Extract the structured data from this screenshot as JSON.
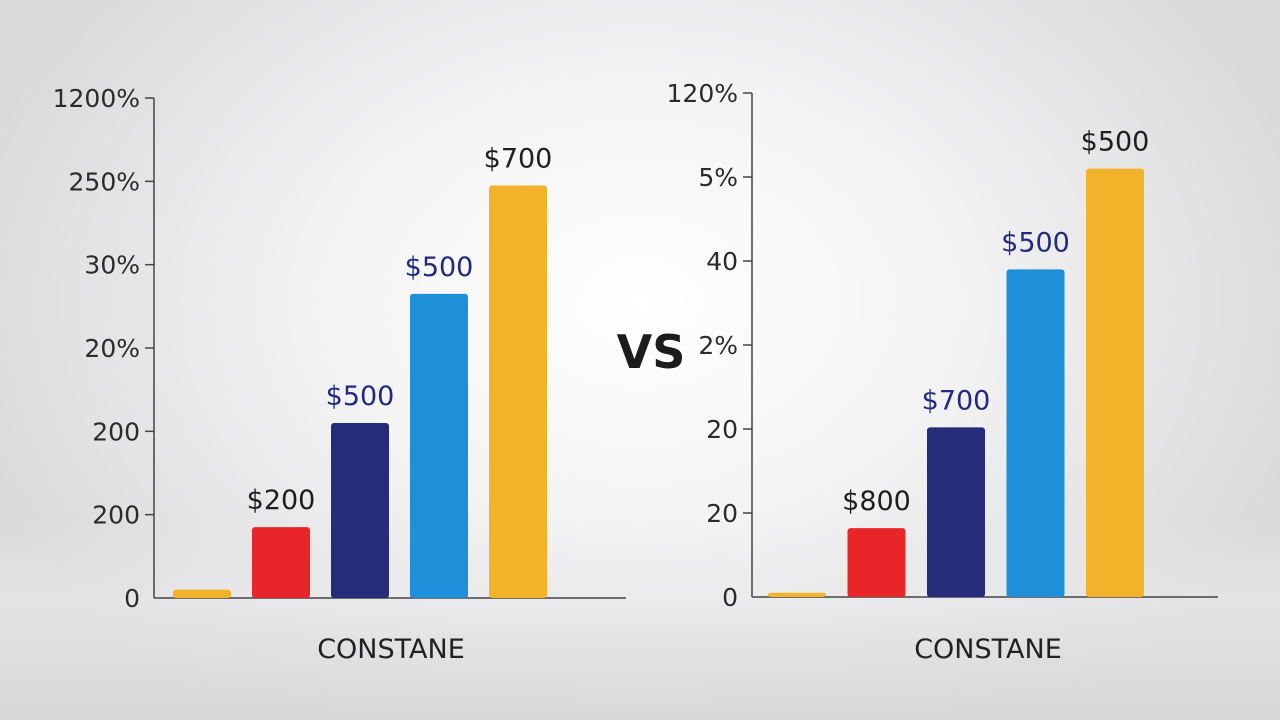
{
  "vs_label": "VS",
  "chart_data": [
    {
      "type": "bar",
      "xlabel": "CONSTANE",
      "yticks": [
        "0",
        "200",
        "200",
        "20%",
        "30%",
        "250%",
        "1200%"
      ],
      "values_index": [
        0.1,
        0.85,
        2.1,
        3.65,
        4.95
      ],
      "data_labels": [
        "",
        "$200",
        "$500",
        "$500",
        "$700"
      ],
      "colors": [
        "#f2b32a",
        "#e8262a",
        "#252d7a",
        "#1f8fd9",
        "#f2b32a"
      ],
      "label_colors": [
        "#1e1e1e",
        "#1e1e1e",
        "#1f2a80",
        "#1f2a80",
        "#1e1e1e"
      ]
    },
    {
      "type": "bar",
      "xlabel": "CONSTANE",
      "yticks": [
        "0",
        "20",
        "20",
        "2%",
        "40",
        "5%",
        "120%"
      ],
      "values_index": [
        0.05,
        0.82,
        2.02,
        3.9,
        5.1
      ],
      "data_labels": [
        "",
        "$800",
        "$700",
        "$500",
        "$500"
      ],
      "colors": [
        "#f2b32a",
        "#e8262a",
        "#252d7a",
        "#1f8fd9",
        "#f2b32a"
      ],
      "label_colors": [
        "#1e1e1e",
        "#1e1e1e",
        "#1f2a80",
        "#1f2a80",
        "#1e1e1e"
      ]
    }
  ]
}
